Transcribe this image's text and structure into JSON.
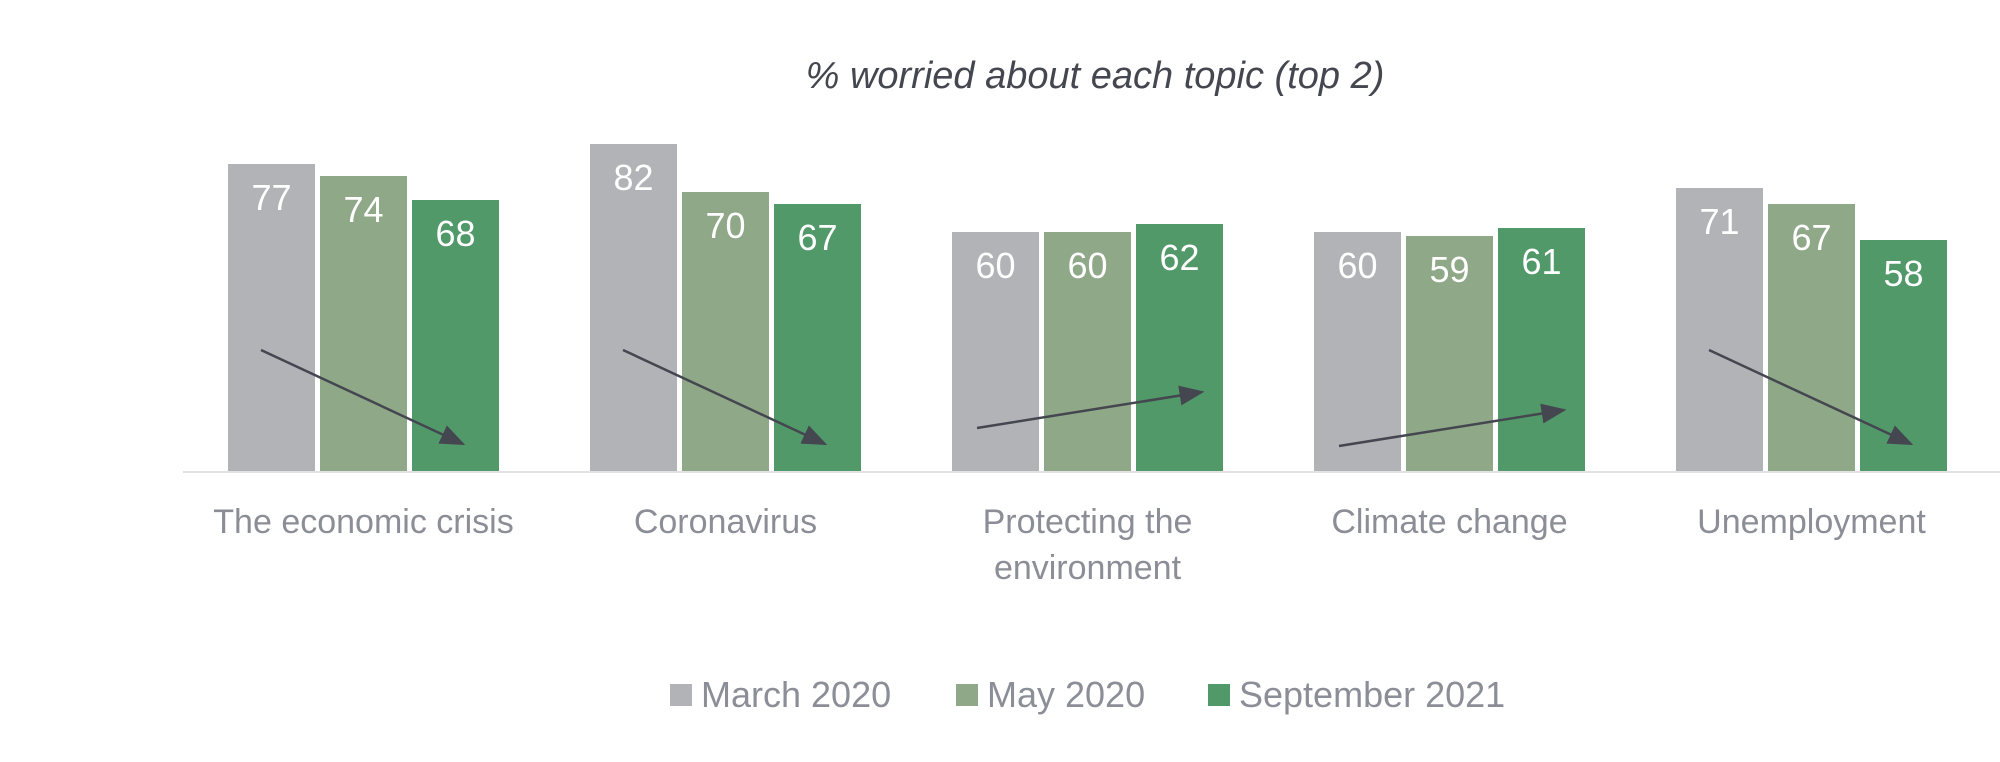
{
  "chart_data": {
    "type": "bar",
    "title": "% worried about each topic (top 2)",
    "categories": [
      [
        "The economic crisis"
      ],
      [
        "Coronavirus"
      ],
      [
        "Protecting the",
        "environment"
      ],
      [
        "Climate change"
      ],
      [
        "Unemployment"
      ]
    ],
    "series": [
      {
        "name": "March 2020",
        "color": "#b1b3b7",
        "values": [
          77,
          82,
          60,
          60,
          71
        ]
      },
      {
        "name": "May 2020",
        "color": "#8fa888",
        "values": [
          74,
          70,
          60,
          59,
          67
        ]
      },
      {
        "name": "September 2021",
        "color": "#52996a",
        "values": [
          68,
          67,
          62,
          61,
          58
        ]
      }
    ],
    "trends": [
      "down",
      "down",
      "up",
      "up",
      "down"
    ],
    "ylim": [
      0,
      100
    ],
    "grid": false,
    "legend_position": "bottom",
    "show_data_labels": true
  },
  "colors": {
    "axis": "#e2e2e2",
    "arrow": "#444650"
  }
}
